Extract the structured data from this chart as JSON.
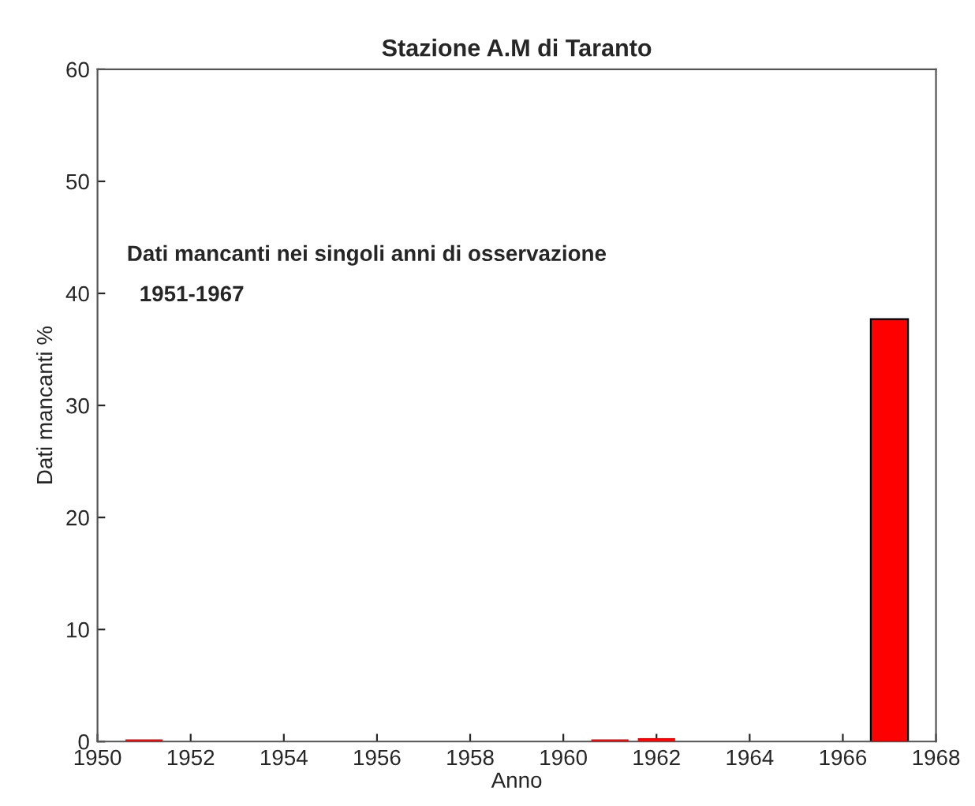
{
  "chart_data": {
    "type": "bar",
    "title": "Stazione A.M di Taranto",
    "xlabel": "Anno",
    "ylabel": "Dati mancanti %",
    "annotations": [
      "Dati mancanti nei singoli anni di osservazione",
      "1951-1967"
    ],
    "x": [
      1951,
      1952,
      1953,
      1954,
      1955,
      1956,
      1957,
      1958,
      1959,
      1960,
      1961,
      1962,
      1963,
      1964,
      1965,
      1966,
      1967
    ],
    "values": [
      0.2,
      0,
      0,
      0,
      0,
      0,
      0,
      0,
      0,
      0,
      0.2,
      0.3,
      0,
      0,
      0,
      0,
      37.7
    ],
    "color": "#ff0000",
    "xlim": [
      1950,
      1968
    ],
    "xticks": [
      1950,
      1952,
      1954,
      1956,
      1958,
      1960,
      1962,
      1964,
      1966,
      1968
    ],
    "ylim": [
      0,
      60
    ],
    "yticks": [
      0,
      10,
      20,
      30,
      40,
      50,
      60
    ],
    "grid": false
  }
}
